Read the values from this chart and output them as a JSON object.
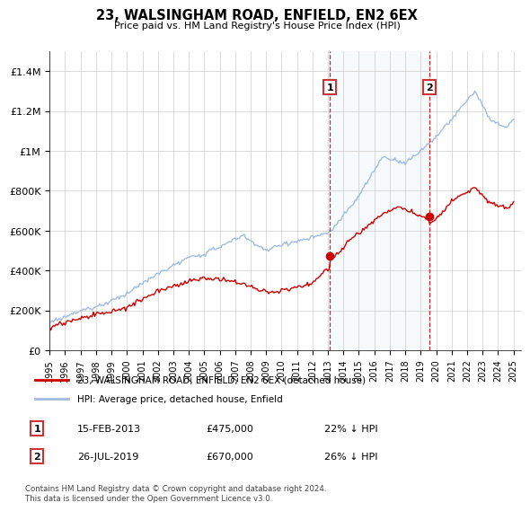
{
  "title": "23, WALSINGHAM ROAD, ENFIELD, EN2 6EX",
  "subtitle": "Price paid vs. HM Land Registry's House Price Index (HPI)",
  "ylim": [
    0,
    1500000
  ],
  "yticks": [
    0,
    200000,
    400000,
    600000,
    800000,
    1000000,
    1200000,
    1400000
  ],
  "ytick_labels": [
    "£0",
    "£200K",
    "£400K",
    "£600K",
    "£800K",
    "£1M",
    "£1.2M",
    "£1.4M"
  ],
  "x_start_year": 1995,
  "x_end_year": 2025,
  "hpi_color": "#a0bce0",
  "price_color": "#cc0000",
  "sale1_year": 2013.12,
  "sale1_price": 475000,
  "sale2_year": 2019.57,
  "sale2_price": 670000,
  "legend_label1": "23, WALSINGHAM ROAD, ENFIELD, EN2 6EX (detached house)",
  "legend_label2": "HPI: Average price, detached house, Enfield",
  "annotation1_date": "15-FEB-2013",
  "annotation1_price": "£475,000",
  "annotation1_hpi": "22% ↓ HPI",
  "annotation2_date": "26-JUL-2019",
  "annotation2_price": "£670,000",
  "annotation2_hpi": "26% ↓ HPI",
  "footer": "Contains HM Land Registry data © Crown copyright and database right 2024.\nThis data is licensed under the Open Government Licence v3.0.",
  "vline_color": "#cc0000",
  "shade_color": "#d8e8f8"
}
